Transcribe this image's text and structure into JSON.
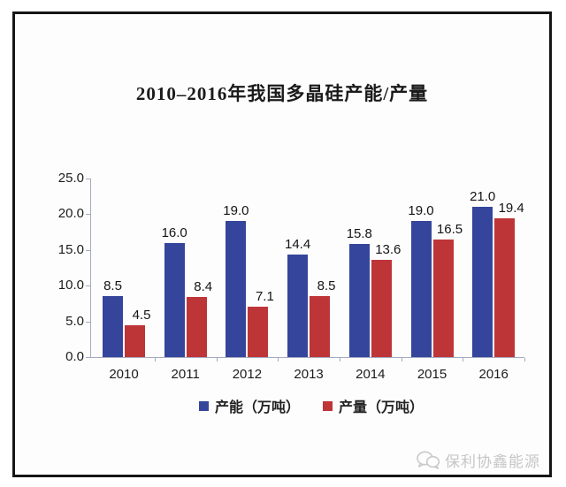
{
  "title": "2010–2016年我国多晶硅产能/产量",
  "chart_data": {
    "type": "bar",
    "title": "2010–2016年我国多晶硅产能/产量",
    "categories": [
      "2010",
      "2011",
      "2012",
      "2013",
      "2014",
      "2015",
      "2016"
    ],
    "series": [
      {
        "name": "产能（万吨）",
        "key": "capacity",
        "color": "#35459B",
        "values": [
          8.5,
          16.0,
          19.0,
          14.4,
          15.8,
          19.0,
          21.0
        ]
      },
      {
        "name": "产量（万吨）",
        "key": "production",
        "color": "#BE3538",
        "values": [
          4.5,
          8.4,
          7.1,
          8.5,
          13.6,
          16.5,
          19.4
        ]
      }
    ],
    "ylim": [
      0,
      25
    ],
    "ytick_step": 5,
    "ytick_labels": [
      "0.0",
      "5.0",
      "10.0",
      "15.0",
      "20.0",
      "25.0"
    ],
    "grid": false,
    "value_labels": true,
    "legend_position": "bottom"
  },
  "watermark": {
    "text": "保利协鑫能源",
    "icon": "chat-bubbles-icon",
    "color": "#c6c6c6"
  },
  "colors": {
    "axis": "#a4aabf",
    "frame_border": "#161616",
    "background": "#fdfdfd",
    "text": "#1c1c1c"
  }
}
